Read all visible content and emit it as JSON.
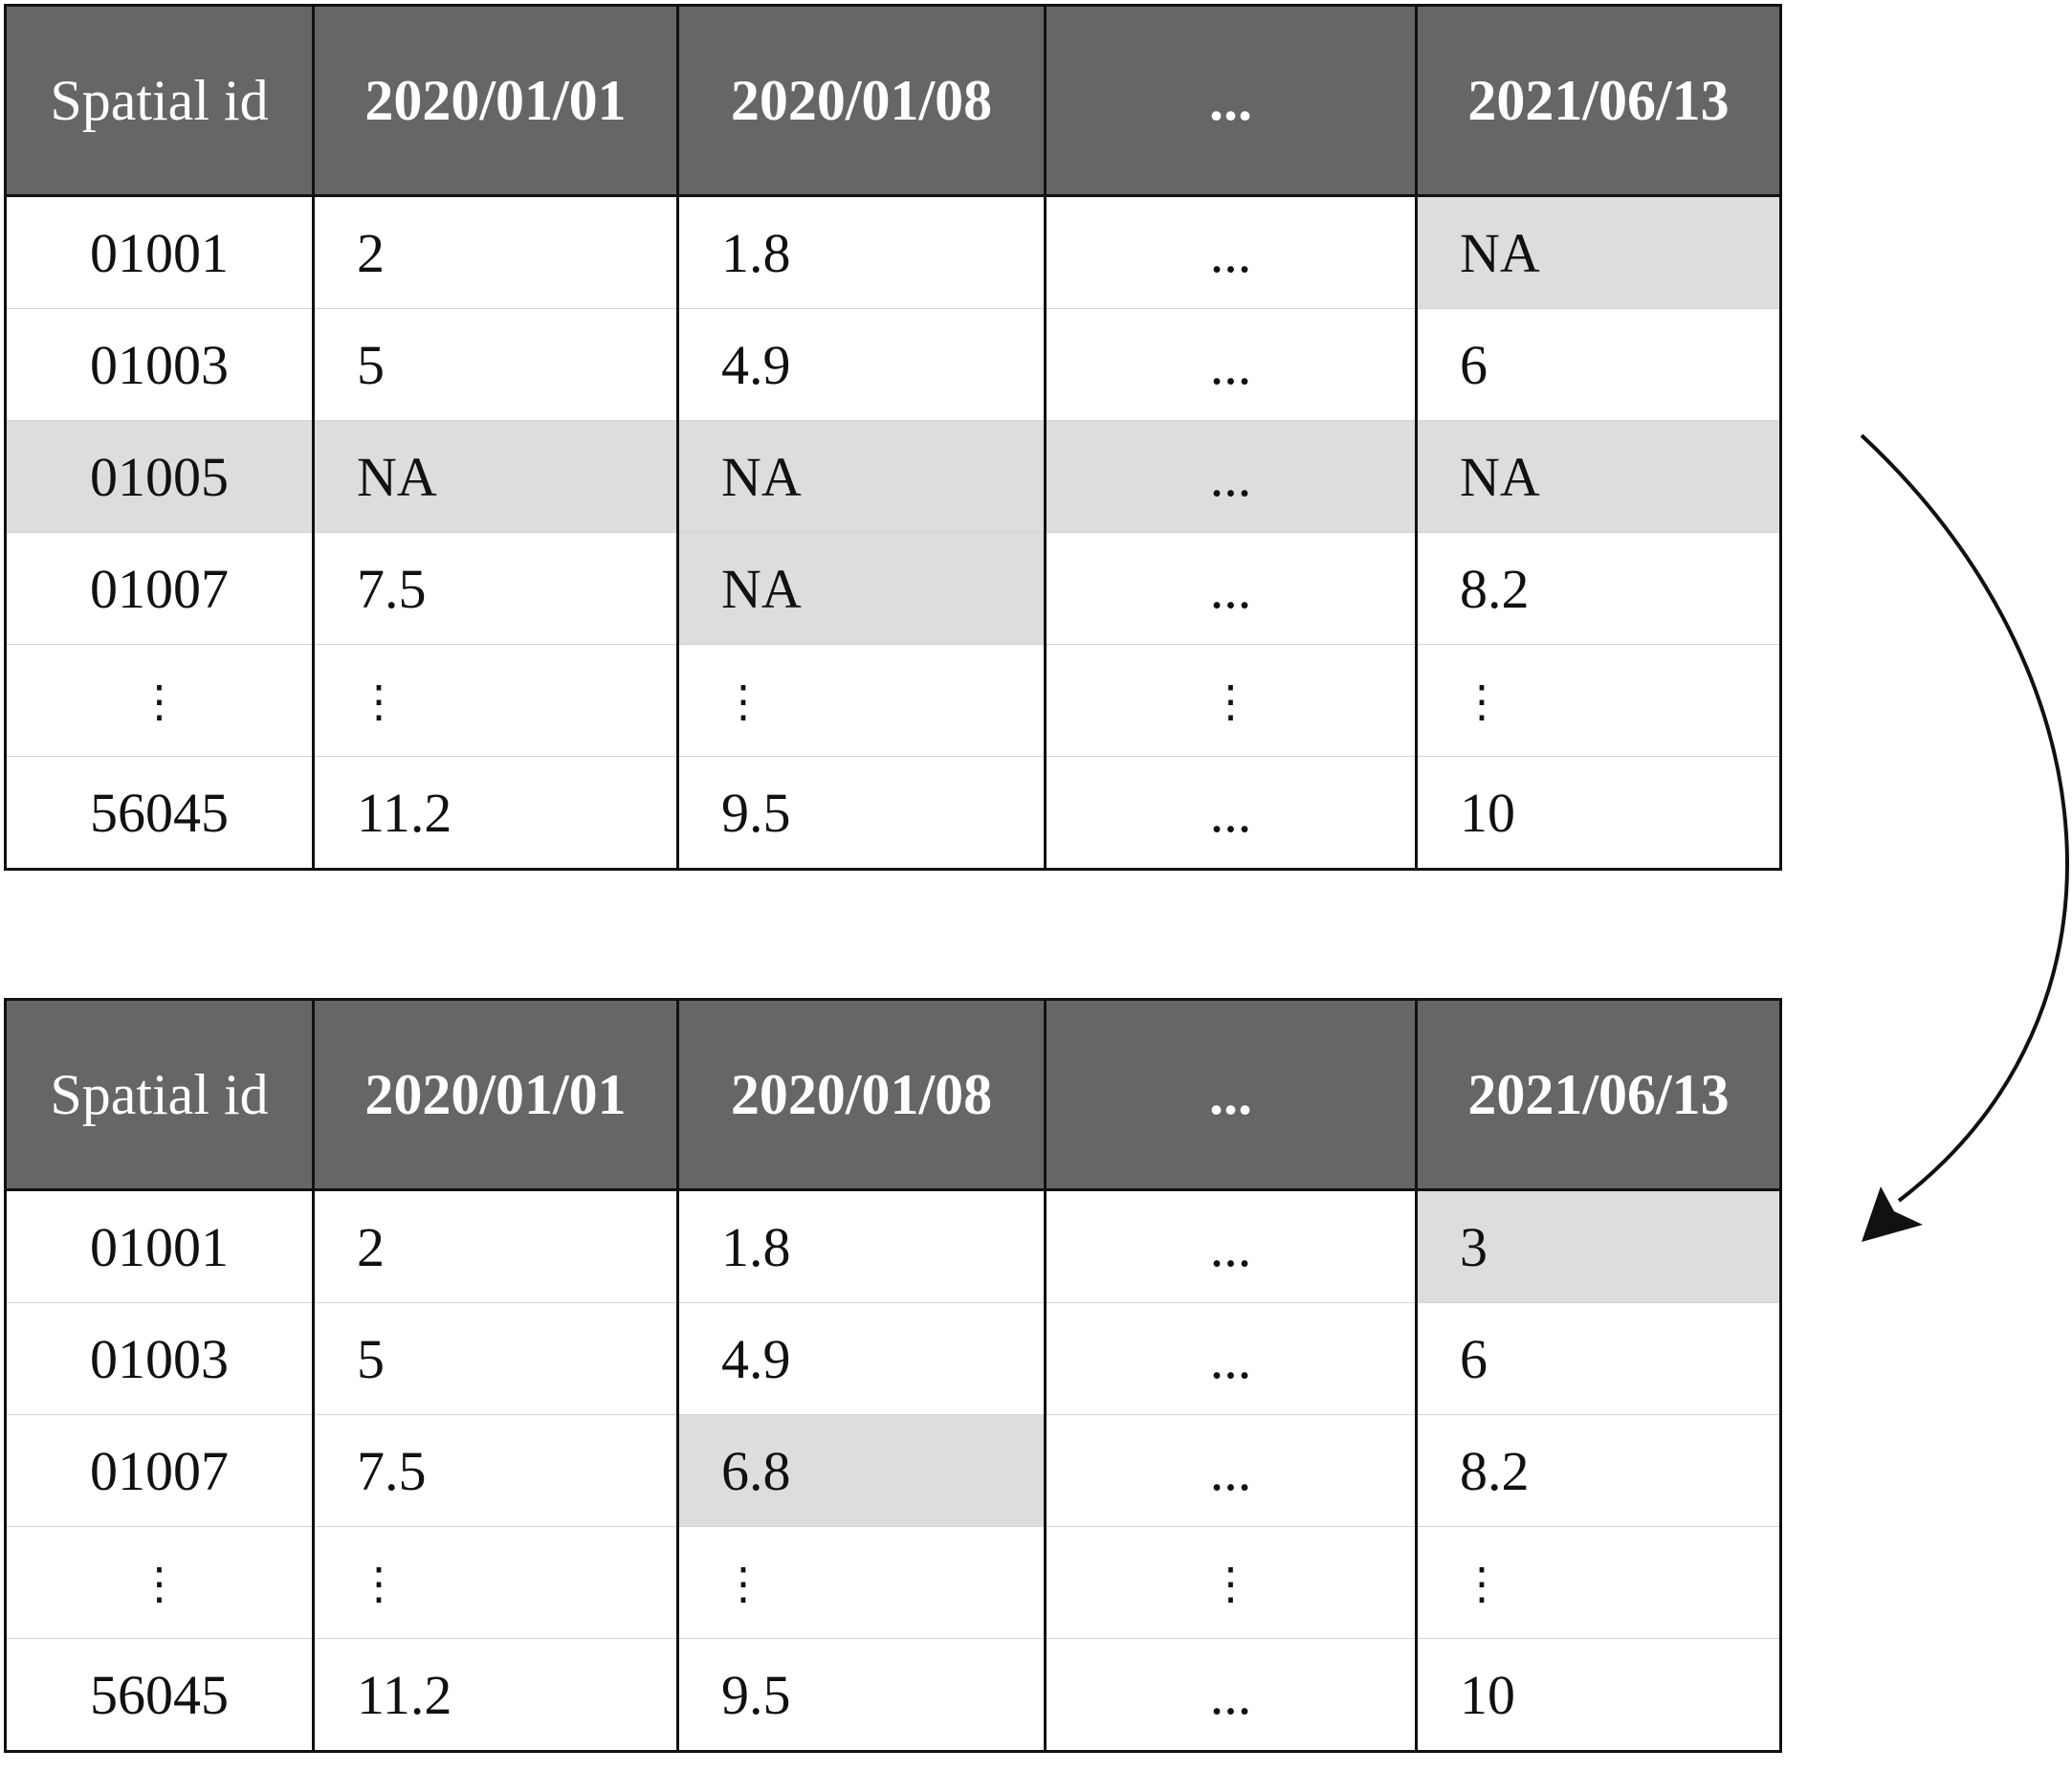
{
  "columns": [
    "Spatial id",
    "2020/01/01",
    "2020/01/08",
    "...",
    "2021/06/13"
  ],
  "table_before": {
    "rows": [
      {
        "cells": [
          "01001",
          "2",
          "1.8",
          "...",
          "NA"
        ],
        "shaded": [
          false,
          false,
          false,
          false,
          true
        ]
      },
      {
        "cells": [
          "01003",
          "5",
          "4.9",
          "...",
          "6"
        ],
        "shaded": [
          false,
          false,
          false,
          false,
          false
        ]
      },
      {
        "cells": [
          "01005",
          "NA",
          "NA",
          "...",
          "NA"
        ],
        "shaded": [
          true,
          true,
          true,
          true,
          true
        ]
      },
      {
        "cells": [
          "01007",
          "7.5",
          "NA",
          "...",
          "8.2"
        ],
        "shaded": [
          false,
          false,
          true,
          false,
          false
        ]
      },
      {
        "cells": [
          "⋮",
          "⋮",
          "⋮",
          "⋮",
          "⋮"
        ],
        "shaded": [
          false,
          false,
          false,
          false,
          false
        ],
        "vdots": true
      },
      {
        "cells": [
          "56045",
          "11.2",
          "9.5",
          "...",
          "10"
        ],
        "shaded": [
          false,
          false,
          false,
          false,
          false
        ]
      }
    ]
  },
  "table_after": {
    "rows": [
      {
        "cells": [
          "01001",
          "2",
          "1.8",
          "...",
          "3"
        ],
        "shaded": [
          false,
          false,
          false,
          false,
          true
        ]
      },
      {
        "cells": [
          "01003",
          "5",
          "4.9",
          "...",
          "6"
        ],
        "shaded": [
          false,
          false,
          false,
          false,
          false
        ]
      },
      {
        "cells": [
          "01007",
          "7.5",
          "6.8",
          "...",
          "8.2"
        ],
        "shaded": [
          false,
          false,
          true,
          false,
          false
        ]
      },
      {
        "cells": [
          "⋮",
          "⋮",
          "⋮",
          "⋮",
          "⋮"
        ],
        "shaded": [
          false,
          false,
          false,
          false,
          false
        ],
        "vdots": true
      },
      {
        "cells": [
          "56045",
          "11.2",
          "9.5",
          "...",
          "10"
        ],
        "shaded": [
          false,
          false,
          false,
          false,
          false
        ]
      }
    ]
  },
  "colors": {
    "header_bg": "#666666",
    "header_text": "#ffffff",
    "shaded_cell": "#dddddd",
    "border": "#111111"
  }
}
